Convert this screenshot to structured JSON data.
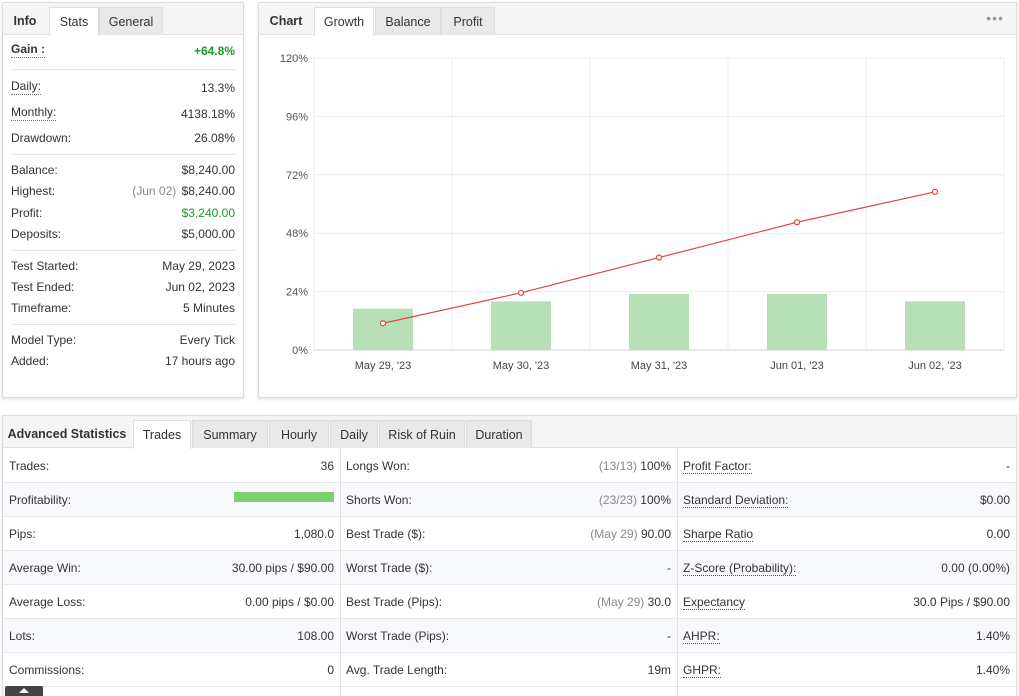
{
  "stats_panel": {
    "tabs": [
      {
        "label": "Info"
      },
      {
        "label": "Stats"
      },
      {
        "label": "General"
      }
    ],
    "rows": {
      "gain": {
        "label": "Gain :",
        "value": "+64.8%"
      },
      "daily": {
        "label": "Daily:",
        "value": "13.3%"
      },
      "monthly": {
        "label": "Monthly:",
        "value": "4138.18%"
      },
      "drawdown": {
        "label": "Drawdown:",
        "value": "26.08%"
      },
      "balance": {
        "label": "Balance:",
        "value": "$8,240.00"
      },
      "highest": {
        "label": "Highest:",
        "prefix": "(Jun 02)",
        "value": "$8,240.00"
      },
      "profit": {
        "label": "Profit:",
        "value": "$3,240.00"
      },
      "deposits": {
        "label": "Deposits:",
        "value": "$5,000.00"
      },
      "test_started": {
        "label": "Test Started:",
        "value": "May 29, 2023"
      },
      "test_ended": {
        "label": "Test Ended:",
        "value": "Jun 02, 2023"
      },
      "timeframe": {
        "label": "Timeframe:",
        "value": "5 Minutes"
      },
      "model_type": {
        "label": "Model Type:",
        "value": "Every Tick"
      },
      "added": {
        "label": "Added:",
        "value": "17 hours ago"
      }
    }
  },
  "chart_panel": {
    "tabs": [
      {
        "label": "Chart"
      },
      {
        "label": "Growth"
      },
      {
        "label": "Balance"
      },
      {
        "label": "Profit"
      }
    ],
    "menu_glyph": "•••"
  },
  "chart_data": {
    "type": "bar",
    "categories": [
      "May 29, '23",
      "May 30, '23",
      "May 31, '23",
      "Jun 01, '23",
      "Jun 02, '23"
    ],
    "y_ticks": [
      "0%",
      "24%",
      "48%",
      "72%",
      "96%",
      "120%"
    ],
    "ylim": [
      0,
      120
    ],
    "series": [
      {
        "type": "bar",
        "values": [
          17,
          20,
          23,
          23,
          20
        ],
        "color": "#b7e0b7"
      },
      {
        "type": "line",
        "values": [
          11,
          23.5,
          38,
          52.5,
          65
        ],
        "color": "#e04646"
      }
    ],
    "grid": true
  },
  "advanced_panel": {
    "tabs": [
      {
        "label": "Advanced Statistics"
      },
      {
        "label": "Trades"
      },
      {
        "label": "Summary"
      },
      {
        "label": "Hourly"
      },
      {
        "label": "Daily"
      },
      {
        "label": "Risk of Ruin"
      },
      {
        "label": "Duration"
      }
    ],
    "profitability_fill": 1.0,
    "rows": [
      {
        "c1": {
          "label": "Trades:",
          "value": "36"
        },
        "c2": {
          "label": "Longs Won:",
          "prefix": "(13/13)",
          "value": "100%"
        },
        "c3": {
          "label": "Profit Factor:",
          "value": "-"
        }
      },
      {
        "c1": {
          "label": "Profitability:",
          "value": ""
        },
        "c2": {
          "label": "Shorts Won:",
          "prefix": "(23/23)",
          "value": "100%"
        },
        "c3": {
          "label": "Standard Deviation:",
          "value": "$0.00"
        }
      },
      {
        "c1": {
          "label": "Pips:",
          "value": "1,080.0"
        },
        "c2": {
          "label": "Best Trade ($):",
          "prefix": "(May 29)",
          "value": "90.00"
        },
        "c3": {
          "label": "Sharpe Ratio",
          "value": "0.00"
        }
      },
      {
        "c1": {
          "label": "Average Win:",
          "value": "30.00 pips / $90.00"
        },
        "c2": {
          "label": "Worst Trade ($):",
          "prefix": "",
          "value": "-"
        },
        "c3": {
          "label": "Z-Score (Probability):",
          "value": "0.00 (0.00%)"
        }
      },
      {
        "c1": {
          "label": "Average Loss:",
          "value": "0.00 pips / $0.00"
        },
        "c2": {
          "label": "Best Trade (Pips):",
          "prefix": "(May 29)",
          "value": "30.0"
        },
        "c3": {
          "label": "Expectancy",
          "value": "30.0 Pips / $90.00"
        }
      },
      {
        "c1": {
          "label": "Lots:",
          "value": "108.00"
        },
        "c2": {
          "label": "Worst Trade (Pips):",
          "prefix": "",
          "value": "-"
        },
        "c3": {
          "label": "AHPR:",
          "value": "1.40%"
        }
      },
      {
        "c1": {
          "label": "Commissions:",
          "value": "0"
        },
        "c2": {
          "label": "Avg. Trade Length:",
          "prefix": "",
          "value": "19m"
        },
        "c3": {
          "label": "GHPR:",
          "value": "1.40%"
        }
      }
    ]
  }
}
